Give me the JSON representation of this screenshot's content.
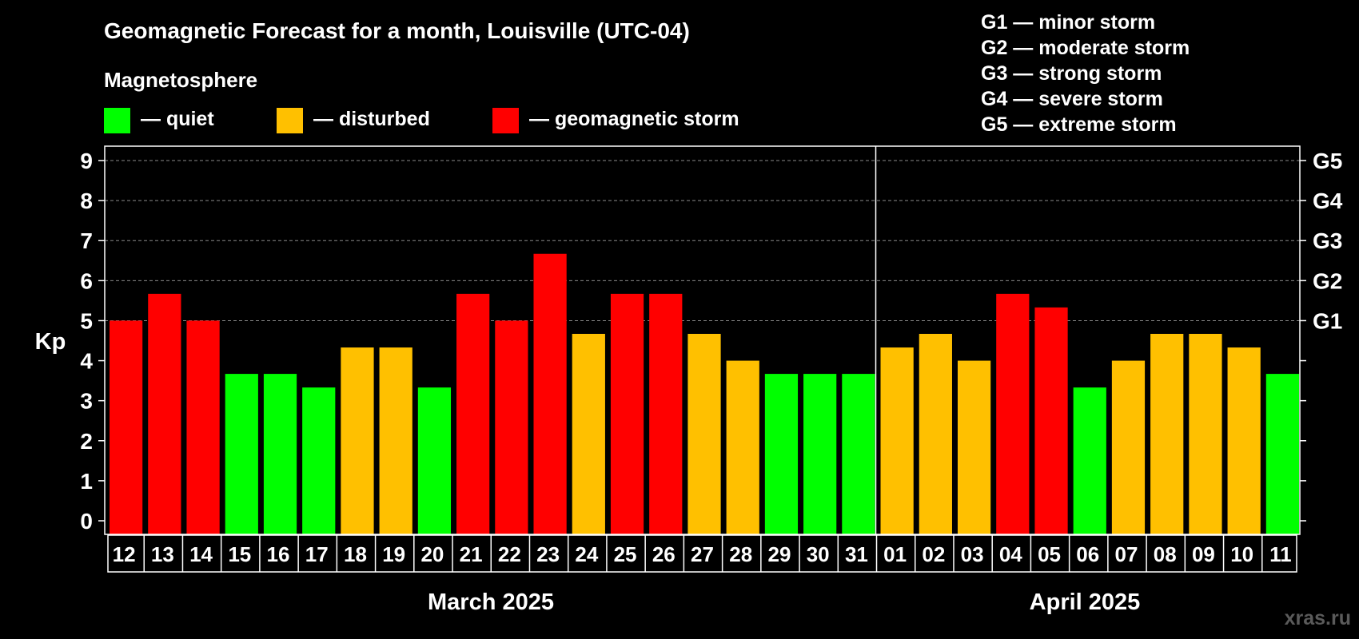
{
  "chart_data": {
    "type": "bar",
    "title": "Geomagnetic Forecast for a month, Louisville (UTC-04)",
    "legend_title": "Magnetosphere",
    "legend": [
      {
        "key": "quiet",
        "label": "— quiet",
        "color": "#00ff00"
      },
      {
        "key": "disturbed",
        "label": "— disturbed",
        "color": "#ffc000"
      },
      {
        "key": "storm",
        "label": "— geomagnetic storm",
        "color": "#ff0000"
      }
    ],
    "storm_scale": [
      "G1 — minor storm",
      "G2 — moderate storm",
      "G3 — strong storm",
      "G4 — severe storm",
      "G5 — extreme storm"
    ],
    "ylabel": "Kp",
    "ylim": [
      0,
      9
    ],
    "yticks": [
      "0",
      "1",
      "2",
      "3",
      "4",
      "5",
      "6",
      "7",
      "8",
      "9"
    ],
    "right_ticks": [
      {
        "value": 5,
        "label": "G1"
      },
      {
        "value": 6,
        "label": "G2"
      },
      {
        "value": 7,
        "label": "G3"
      },
      {
        "value": 8,
        "label": "G4"
      },
      {
        "value": 9,
        "label": "G5"
      }
    ],
    "grid": "dashed horizontal at 5–9",
    "categories": [
      "12",
      "13",
      "14",
      "15",
      "16",
      "17",
      "18",
      "19",
      "20",
      "21",
      "22",
      "23",
      "24",
      "25",
      "26",
      "27",
      "28",
      "29",
      "30",
      "31",
      "01",
      "02",
      "03",
      "04",
      "05",
      "06",
      "07",
      "08",
      "09",
      "10",
      "11"
    ],
    "values": [
      5.0,
      5.67,
      5.0,
      3.67,
      3.67,
      3.33,
      4.33,
      4.33,
      3.33,
      5.67,
      5.0,
      6.67,
      4.67,
      5.67,
      5.67,
      4.67,
      4.0,
      3.67,
      3.67,
      3.67,
      4.33,
      4.67,
      4.0,
      5.67,
      5.33,
      3.33,
      4.0,
      4.67,
      4.67,
      4.33,
      3.67
    ],
    "levels": [
      "storm",
      "storm",
      "storm",
      "quiet",
      "quiet",
      "quiet",
      "disturbed",
      "disturbed",
      "quiet",
      "storm",
      "storm",
      "storm",
      "disturbed",
      "storm",
      "storm",
      "disturbed",
      "disturbed",
      "quiet",
      "quiet",
      "quiet",
      "disturbed",
      "disturbed",
      "disturbed",
      "storm",
      "storm",
      "quiet",
      "disturbed",
      "disturbed",
      "disturbed",
      "disturbed",
      "quiet"
    ],
    "months": [
      {
        "label": "March 2025",
        "from": 0,
        "to": 19
      },
      {
        "label": "April 2025",
        "from": 20,
        "to": 30
      }
    ]
  },
  "watermark": "xras.ru"
}
